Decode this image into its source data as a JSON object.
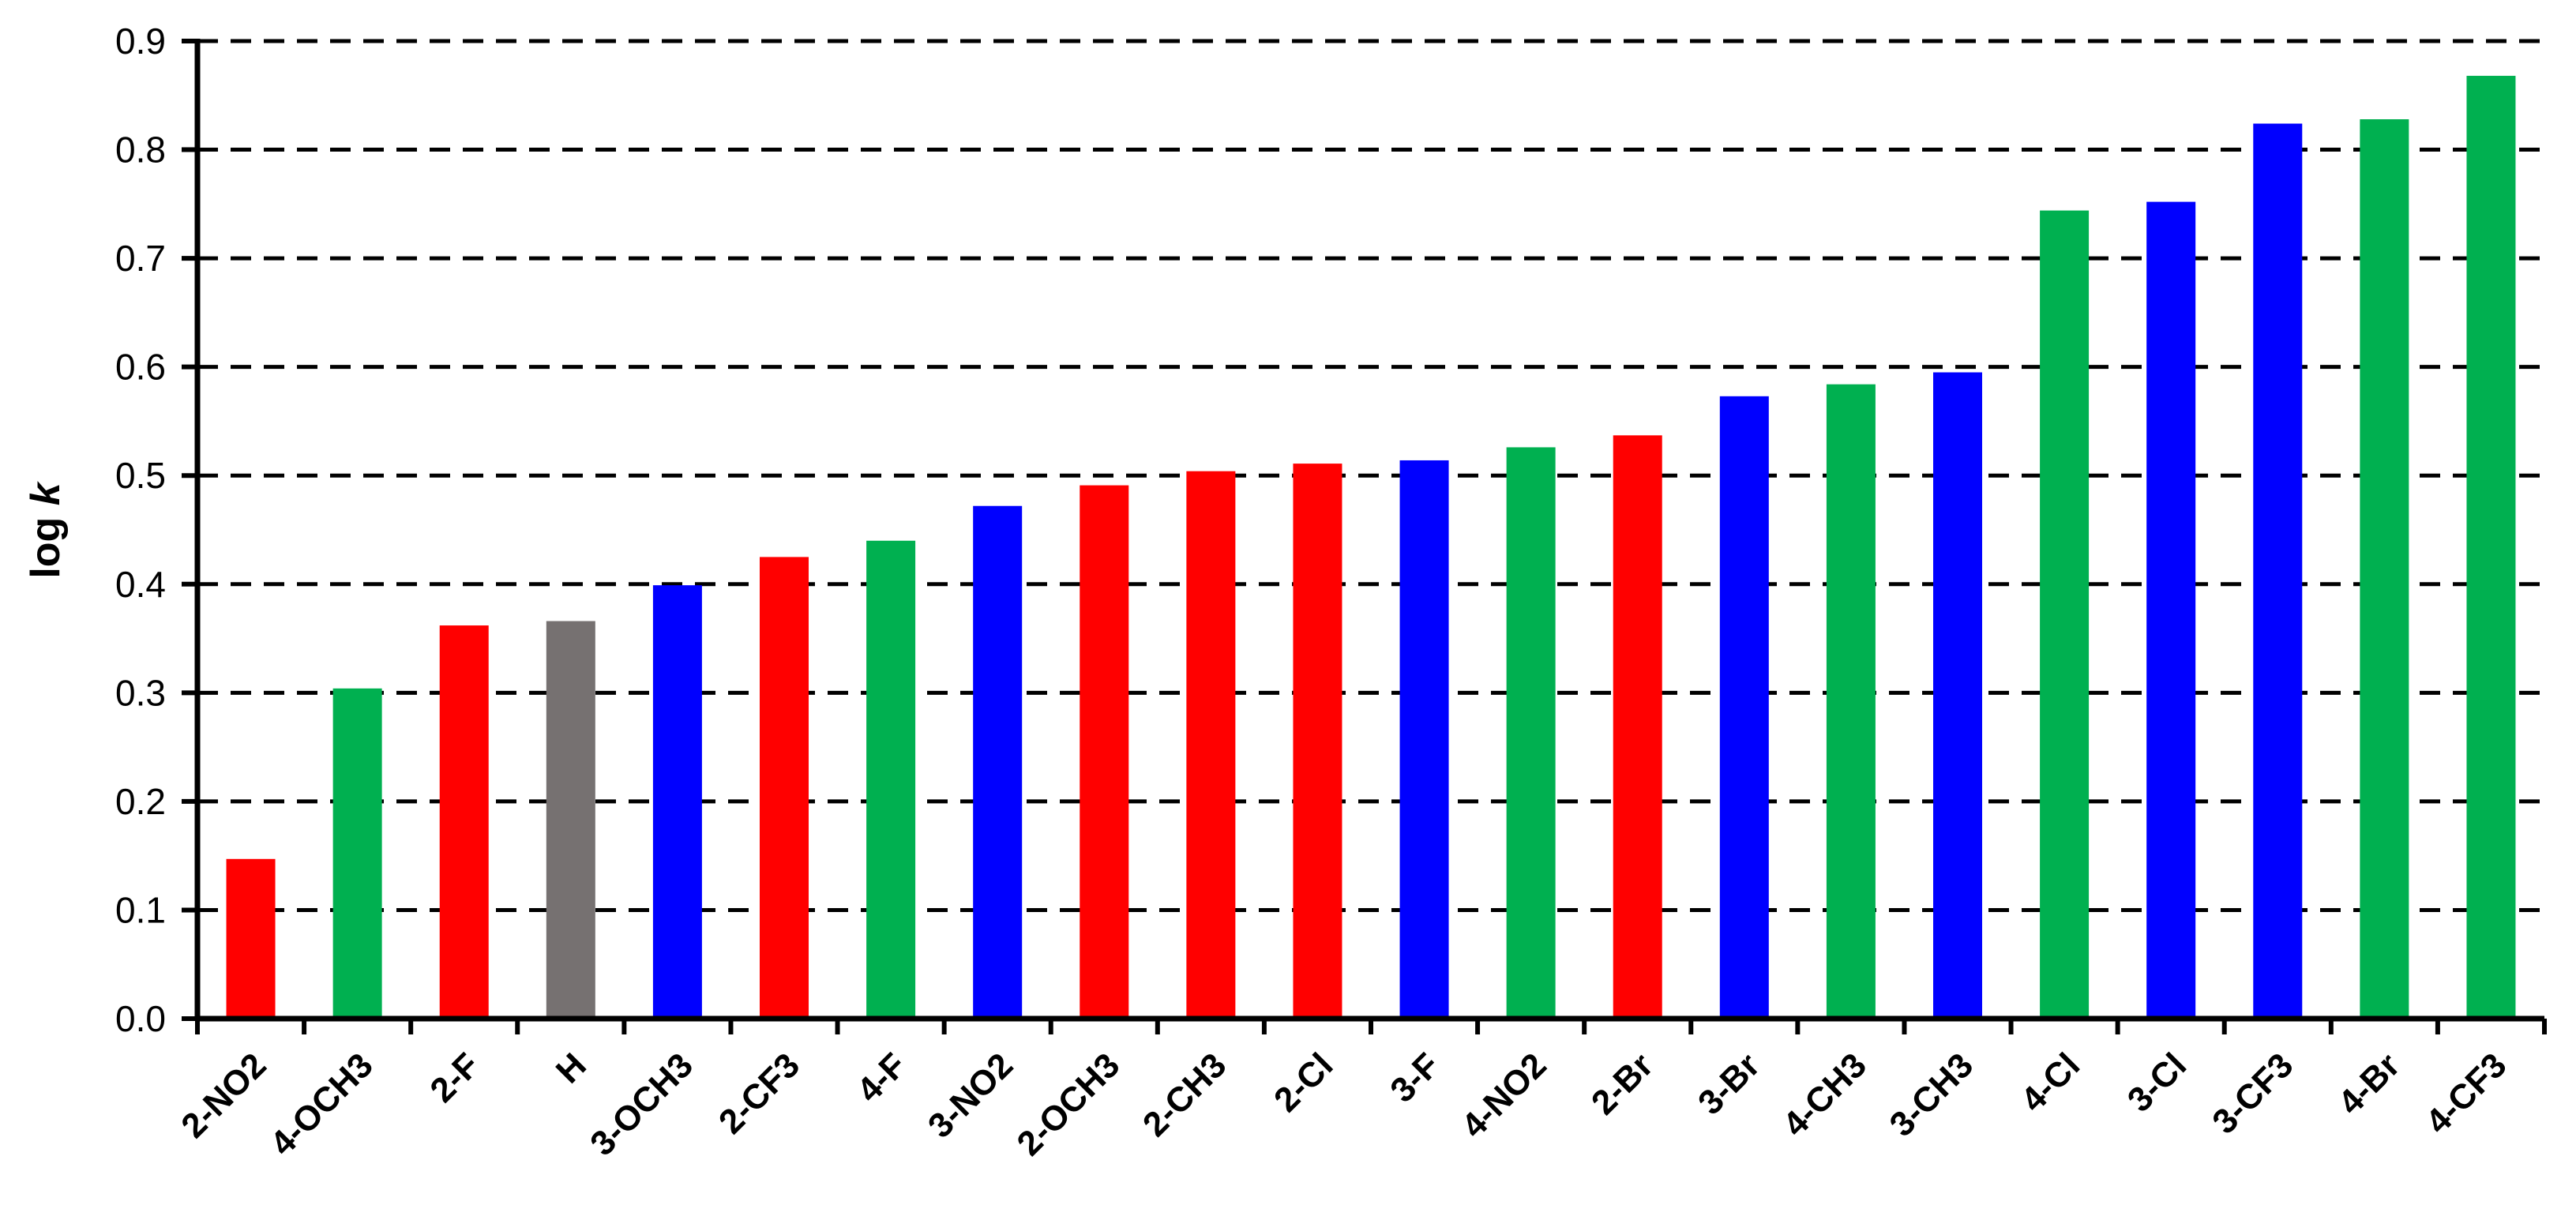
{
  "chart_data": {
    "type": "bar",
    "title": "",
    "xlabel": "",
    "ylabel": "log k",
    "ylabel_parts": {
      "plain": "log ",
      "italic": "k"
    },
    "ylim": [
      0,
      0.9
    ],
    "yticks": [
      "0.0",
      "0.1",
      "0.2",
      "0.3",
      "0.4",
      "0.5",
      "0.6",
      "0.7",
      "0.8",
      "0.9"
    ],
    "grid": "horizontal dashed",
    "legend": "none",
    "categories": [
      "2-NO2",
      "4-OCH3",
      "2-F",
      "H",
      "3-OCH3",
      "2-CF3",
      "4-F",
      "3-NO2",
      "2-OCH3",
      "2-CH3",
      "2-Cl",
      "3-F",
      "4-NO2",
      "2-Br",
      "3-Br",
      "4-CH3",
      "3-CH3",
      "4-Cl",
      "3-Cl",
      "3-CF3",
      "4-Br",
      "4-CF3"
    ],
    "values": [
      0.147,
      0.304,
      0.362,
      0.366,
      0.399,
      0.425,
      0.44,
      0.472,
      0.491,
      0.504,
      0.511,
      0.514,
      0.526,
      0.537,
      0.573,
      0.584,
      0.595,
      0.744,
      0.752,
      0.824,
      0.828,
      0.868
    ],
    "bar_colors": [
      "#FF0000",
      "#00B050",
      "#FF0000",
      "#767171",
      "#0000FF",
      "#FF0000",
      "#00B050",
      "#0000FF",
      "#FF0000",
      "#FF0000",
      "#FF0000",
      "#0000FF",
      "#00B050",
      "#FF0000",
      "#0000FF",
      "#00B050",
      "#0000FF",
      "#00B050",
      "#0000FF",
      "#0000FF",
      "#00B050",
      "#00B050"
    ]
  }
}
